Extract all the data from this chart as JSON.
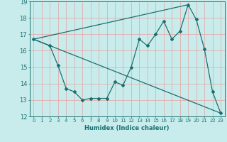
{
  "title": "",
  "xlabel": "Humidex (Indice chaleur)",
  "ylabel": "",
  "xlim": [
    -0.5,
    23.5
  ],
  "ylim": [
    12,
    19
  ],
  "yticks": [
    12,
    13,
    14,
    15,
    16,
    17,
    18,
    19
  ],
  "xticks": [
    0,
    1,
    2,
    3,
    4,
    5,
    6,
    7,
    8,
    9,
    10,
    11,
    12,
    13,
    14,
    15,
    16,
    17,
    18,
    19,
    20,
    21,
    22,
    23
  ],
  "bg_color": "#c8ecec",
  "grid_color": "#e8a0a0",
  "line_color": "#1a7070",
  "line1_x": [
    0,
    2,
    3,
    4,
    5,
    6,
    7,
    8,
    9,
    10,
    11,
    12,
    13,
    14,
    15,
    16,
    17,
    18,
    19,
    20,
    21,
    22,
    23
  ],
  "line1_y": [
    16.7,
    16.3,
    15.1,
    13.7,
    13.5,
    13.0,
    13.1,
    13.1,
    13.1,
    14.1,
    13.9,
    15.0,
    16.7,
    16.3,
    17.0,
    17.8,
    16.7,
    17.2,
    18.8,
    17.9,
    16.1,
    13.5,
    12.2
  ],
  "line2_x": [
    0,
    19
  ],
  "line2_y": [
    16.7,
    18.8
  ],
  "line3_x": [
    0,
    23
  ],
  "line3_y": [
    16.7,
    12.2
  ]
}
